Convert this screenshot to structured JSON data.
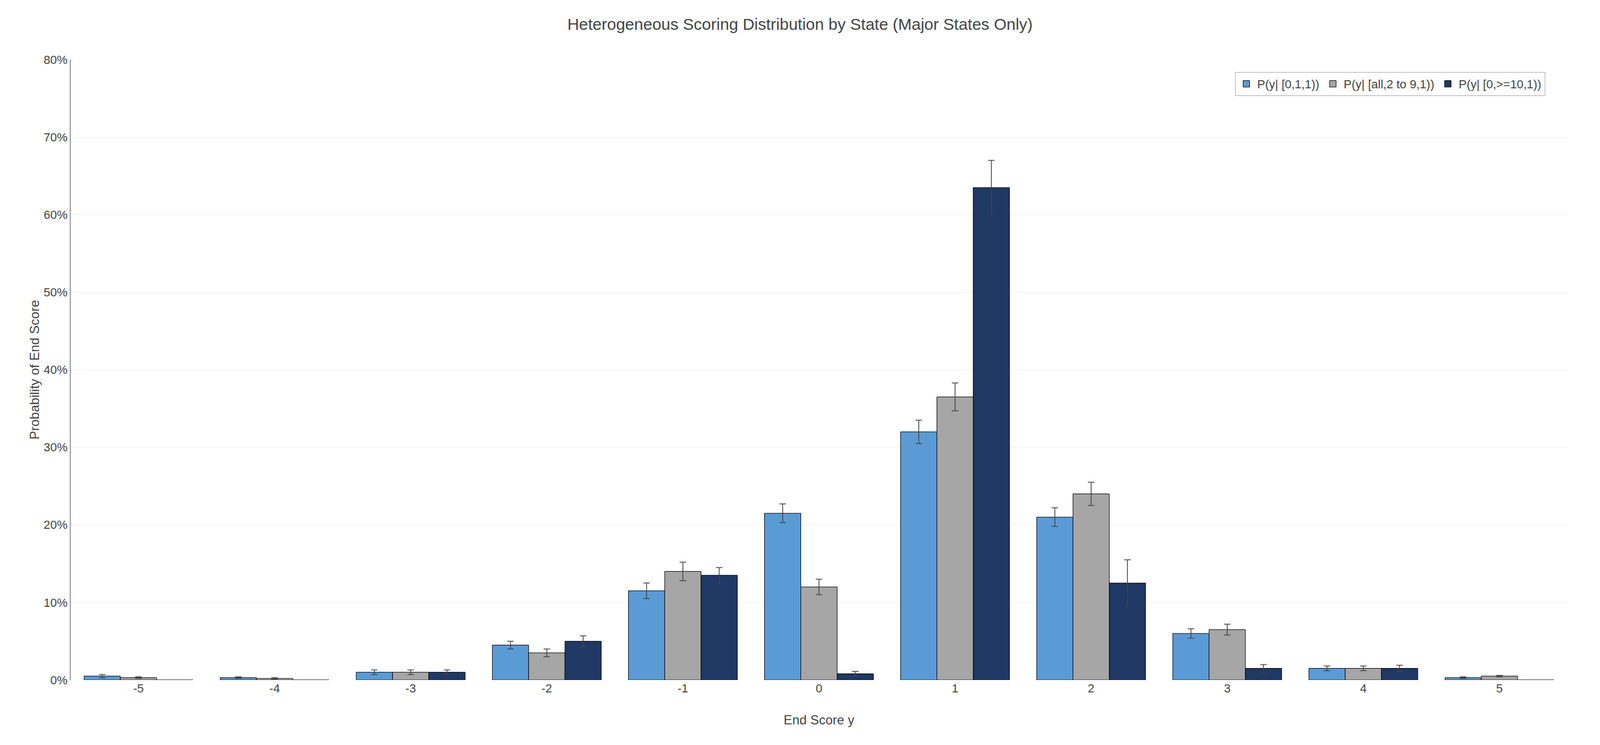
{
  "chart_data": {
    "type": "bar",
    "title": "Heterogeneous Scoring Distribution by State (Major States Only)",
    "xlabel": "End Score y",
    "ylabel": "Probability of End Score",
    "categories": [
      -5,
      -4,
      -3,
      -2,
      -1,
      0,
      1,
      2,
      3,
      4,
      5
    ],
    "series": [
      {
        "name": "P(y| [0,1,1))",
        "color": "#5b9bd5",
        "values": [
          0.005,
          0.003,
          0.01,
          0.045,
          0.115,
          0.215,
          0.32,
          0.21,
          0.06,
          0.015,
          0.003
        ],
        "errors": [
          0.002,
          0.001,
          0.003,
          0.005,
          0.01,
          0.012,
          0.015,
          0.012,
          0.006,
          0.003,
          0.001
        ]
      },
      {
        "name": "P(y| [all,2 to 9,1))",
        "color": "#a6a6a6",
        "values": [
          0.003,
          0.002,
          0.01,
          0.035,
          0.14,
          0.12,
          0.365,
          0.24,
          0.065,
          0.015,
          0.005
        ],
        "errors": [
          0.001,
          0.001,
          0.003,
          0.005,
          0.012,
          0.01,
          0.018,
          0.015,
          0.007,
          0.003,
          0.001
        ]
      },
      {
        "name": "P(y| [0,>=10,1))",
        "color": "#1f3864",
        "values": [
          0.0,
          0.0,
          0.01,
          0.05,
          0.135,
          0.008,
          0.635,
          0.125,
          0.015,
          0.015,
          0.0
        ],
        "errors": [
          0.0,
          0.0,
          0.003,
          0.007,
          0.01,
          0.003,
          0.035,
          0.03,
          0.005,
          0.004,
          0.0
        ]
      }
    ],
    "ylim": [
      0,
      0.8
    ],
    "yticks": [
      {
        "value": 0.0,
        "label": "0%"
      },
      {
        "value": 0.1,
        "label": "10%"
      },
      {
        "value": 0.2,
        "label": "20%"
      },
      {
        "value": 0.3,
        "label": "30%"
      },
      {
        "value": 0.4,
        "label": "40%"
      },
      {
        "value": 0.5,
        "label": "50%"
      },
      {
        "value": 0.6,
        "label": "60%"
      },
      {
        "value": 0.7,
        "label": "70%"
      },
      {
        "value": 0.8,
        "label": "80%"
      }
    ],
    "grid": true,
    "legend": "upper right"
  }
}
